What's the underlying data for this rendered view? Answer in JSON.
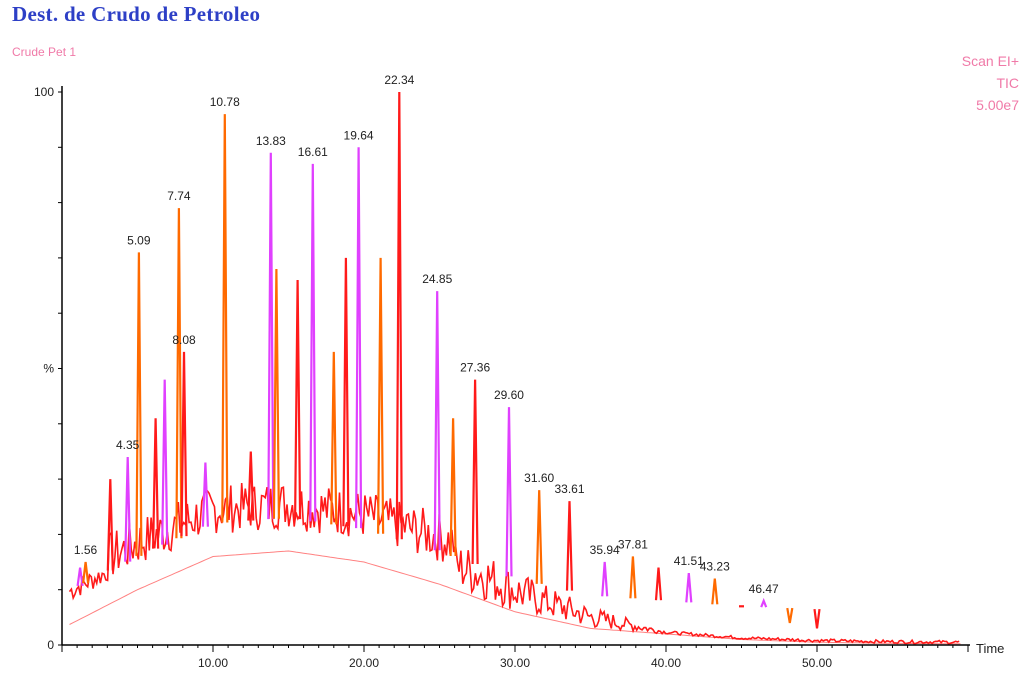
{
  "header": {
    "title": "Dest. de Crudo de Petroleo",
    "subtitle": "Crude Pet 1",
    "scan_mode": "Scan EI+",
    "trace": "TIC",
    "intensity": "5.00e7"
  },
  "colors": {
    "title": "#2d3fc6",
    "info": "#f07aa8",
    "trace": "#ff1a1a",
    "peak_orange": "#ff6a00",
    "peak_pink": "#e040ff",
    "axis": "#000000"
  },
  "chart_data": {
    "type": "line",
    "xlabel": "Time",
    "ylabel": "%",
    "xlim": [
      0,
      60
    ],
    "ylim": [
      0,
      100
    ],
    "x_ticks": [
      "10.00",
      "20.00",
      "30.00",
      "40.00",
      "50.00"
    ],
    "y_ticks": [
      "0",
      "%",
      "100"
    ],
    "baseline_hump": {
      "x": [
        0,
        5,
        10,
        15,
        20,
        25,
        30,
        35,
        40,
        45,
        50,
        55,
        60
      ],
      "y": [
        3,
        10,
        16,
        17,
        15,
        11,
        6,
        3,
        2,
        1,
        0.5,
        0.3,
        0.2
      ]
    },
    "peaks": [
      {
        "x": 1.2,
        "y": 14,
        "label": ""
      },
      {
        "x": 1.56,
        "y": 15,
        "label": "1.56"
      },
      {
        "x": 3.2,
        "y": 30,
        "label": ""
      },
      {
        "x": 4.35,
        "y": 34,
        "label": "4.35"
      },
      {
        "x": 5.09,
        "y": 71,
        "label": "5.09"
      },
      {
        "x": 6.2,
        "y": 41,
        "label": ""
      },
      {
        "x": 6.8,
        "y": 48,
        "label": ""
      },
      {
        "x": 7.74,
        "y": 79,
        "label": "7.74"
      },
      {
        "x": 8.08,
        "y": 53,
        "label": "8.08"
      },
      {
        "x": 9.5,
        "y": 33,
        "label": ""
      },
      {
        "x": 10.78,
        "y": 96,
        "label": "10.78"
      },
      {
        "x": 12.5,
        "y": 35,
        "label": ""
      },
      {
        "x": 13.83,
        "y": 89,
        "label": "13.83"
      },
      {
        "x": 14.2,
        "y": 68,
        "label": ""
      },
      {
        "x": 15.6,
        "y": 66,
        "label": ""
      },
      {
        "x": 16.61,
        "y": 87,
        "label": "16.61"
      },
      {
        "x": 18.0,
        "y": 53,
        "label": ""
      },
      {
        "x": 18.8,
        "y": 70,
        "label": ""
      },
      {
        "x": 19.64,
        "y": 90,
        "label": "19.64"
      },
      {
        "x": 21.1,
        "y": 70,
        "label": ""
      },
      {
        "x": 22.34,
        "y": 100,
        "label": "22.34"
      },
      {
        "x": 24.85,
        "y": 64,
        "label": "24.85"
      },
      {
        "x": 25.9,
        "y": 41,
        "label": ""
      },
      {
        "x": 27.36,
        "y": 48,
        "label": "27.36"
      },
      {
        "x": 29.6,
        "y": 43,
        "label": "29.60"
      },
      {
        "x": 31.6,
        "y": 28,
        "label": "31.60"
      },
      {
        "x": 33.61,
        "y": 26,
        "label": "33.61"
      },
      {
        "x": 35.94,
        "y": 15,
        "label": "35.94"
      },
      {
        "x": 37.81,
        "y": 16,
        "label": "37.81"
      },
      {
        "x": 39.5,
        "y": 14,
        "label": ""
      },
      {
        "x": 41.51,
        "y": 13,
        "label": "41.51"
      },
      {
        "x": 43.23,
        "y": 12,
        "label": "43.23"
      },
      {
        "x": 45.0,
        "y": 7,
        "label": ""
      },
      {
        "x": 46.47,
        "y": 8,
        "label": "46.47"
      },
      {
        "x": 48.2,
        "y": 4,
        "label": ""
      },
      {
        "x": 50.0,
        "y": 3,
        "label": ""
      }
    ]
  }
}
